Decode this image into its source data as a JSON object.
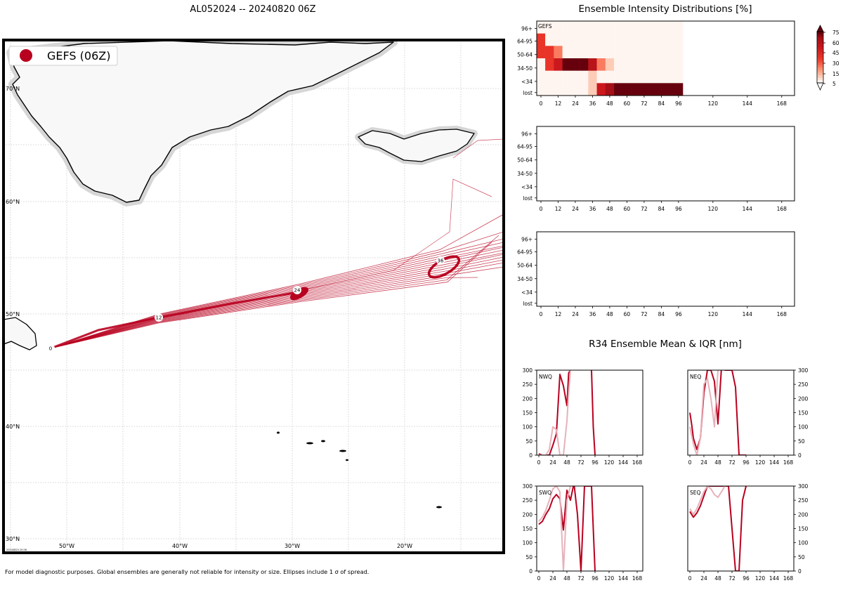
{
  "main_title": "AL052024 -- 20240820 06Z",
  "footer_note": "For model diagnostic purposes. Global ensembles are generally not reliable for intensity or size. Ellipses include 1 σ of spread.",
  "stamp": "20240820 20:06",
  "map": {
    "legend_label": "GEFS (06Z)",
    "lat_labels": [
      "70°N",
      "60°N",
      "50°N",
      "40°N",
      "30°N"
    ],
    "lon_labels": [
      "50°W",
      "40°W",
      "30°W",
      "20°W"
    ],
    "track_color": "#b8001f",
    "forecast_hours": [
      "0",
      "12",
      "24",
      "36"
    ]
  },
  "intensity_title": "Ensemble Intensity Distributions [%]",
  "r34_title": "R34 Ensemble Mean & IQR [nm]",
  "colorbar": {
    "ticks": [
      "75",
      "60",
      "45",
      "30",
      "15",
      "5"
    ]
  },
  "chart_data": [
    {
      "type": "heatmap",
      "label": "GEFS",
      "x_ticks": [
        "0",
        "12",
        "24",
        "36",
        "48",
        "60",
        "72",
        "84",
        "96",
        "120",
        "144",
        "168"
      ],
      "y_categories": [
        "96+",
        "64-95",
        "50-64",
        "34-50",
        "<34",
        "lost"
      ],
      "colormap": "Reds",
      "x_hours": [
        0,
        6,
        12,
        18,
        24,
        30,
        36,
        42,
        48,
        54,
        60,
        66,
        72,
        78,
        84,
        90,
        96
      ],
      "values_percent": {
        "96+": [
          0,
          0,
          0,
          0,
          0,
          0,
          0,
          0,
          0,
          0,
          0,
          0,
          0,
          0,
          0,
          0,
          0
        ],
        "64-95": [
          50,
          0,
          0,
          0,
          0,
          0,
          0,
          0,
          0,
          0,
          0,
          0,
          0,
          0,
          0,
          0,
          0
        ],
        "50-64": [
          50,
          50,
          30,
          0,
          0,
          0,
          0,
          0,
          0,
          0,
          0,
          0,
          0,
          0,
          0,
          0,
          0
        ],
        "34-50": [
          0,
          50,
          70,
          100,
          100,
          100,
          80,
          30,
          10,
          0,
          0,
          0,
          0,
          0,
          0,
          0,
          0
        ],
        "<34": [
          0,
          0,
          0,
          0,
          0,
          0,
          10,
          0,
          0,
          0,
          0,
          0,
          0,
          0,
          0,
          0,
          0
        ],
        "lost": [
          0,
          0,
          0,
          0,
          0,
          0,
          10,
          70,
          90,
          100,
          100,
          100,
          100,
          100,
          100,
          100,
          100
        ]
      }
    },
    {
      "type": "heatmap",
      "label": "",
      "x_ticks": [
        "0",
        "12",
        "24",
        "36",
        "48",
        "60",
        "72",
        "84",
        "96",
        "120",
        "144",
        "168"
      ],
      "y_categories": [
        "96+",
        "64-95",
        "50-64",
        "34-50",
        "<34",
        "lost"
      ]
    },
    {
      "type": "heatmap",
      "label": "",
      "x_ticks": [
        "0",
        "12",
        "24",
        "36",
        "48",
        "60",
        "72",
        "84",
        "96",
        "120",
        "144",
        "168"
      ],
      "y_categories": [
        "96+",
        "64-95",
        "50-64",
        "34-50",
        "<34",
        "lost"
      ]
    },
    {
      "type": "line",
      "quadrant": "NWQ",
      "x_ticks": [
        "0",
        "24",
        "48",
        "72",
        "96",
        "120",
        "144",
        "168"
      ],
      "y_ticks": [
        "300",
        "250",
        "200",
        "150",
        "100",
        "50",
        "0"
      ],
      "ylim": [
        0,
        300
      ],
      "series": [
        {
          "role": "mean",
          "x": [
            0,
            3,
            6,
            12,
            18,
            24,
            30,
            36,
            42,
            45,
            48,
            51,
            54
          ],
          "y": [
            5,
            2,
            0,
            0,
            0,
            35,
            75,
            285,
            245,
            210,
            175,
            290,
            300
          ]
        },
        {
          "role": "iqr",
          "x": [
            0,
            6,
            12,
            18,
            24,
            30,
            36,
            42,
            45,
            48,
            51,
            54
          ],
          "y": [
            0,
            0,
            0,
            20,
            100,
            90,
            0,
            0,
            60,
            120,
            220,
            300
          ]
        },
        {
          "role": "mean",
          "x": [
            90,
            93,
            96
          ],
          "y": [
            300,
            100,
            0
          ]
        }
      ]
    },
    {
      "type": "line",
      "quadrant": "NEQ",
      "x_ticks": [
        "0",
        "24",
        "48",
        "72",
        "96",
        "120",
        "144",
        "168"
      ],
      "y_ticks": [
        "300",
        "250",
        "200",
        "150",
        "100",
        "50",
        "0"
      ],
      "ylim": [
        0,
        300
      ],
      "series": [
        {
          "role": "mean",
          "x": [
            0,
            3,
            6,
            9,
            12,
            18,
            24,
            30,
            36,
            42,
            48,
            54,
            60,
            66,
            72,
            78,
            84,
            90,
            96
          ],
          "y": [
            150,
            110,
            60,
            40,
            20,
            60,
            220,
            300,
            300,
            260,
            110,
            310,
            300,
            300,
            300,
            240,
            0,
            0,
            0
          ]
        },
        {
          "role": "iqr",
          "x": [
            0,
            6,
            12,
            18,
            24,
            30,
            36,
            42,
            48
          ],
          "y": [
            100,
            40,
            0,
            60,
            250,
            270,
            200,
            100,
            300
          ]
        }
      ]
    },
    {
      "type": "line",
      "quadrant": "SWQ",
      "x_ticks": [
        "0",
        "24",
        "48",
        "72",
        "96",
        "120",
        "144",
        "168"
      ],
      "y_ticks": [
        "300",
        "250",
        "200",
        "150",
        "100",
        "50",
        "0"
      ],
      "ylim": [
        0,
        300
      ],
      "series": [
        {
          "role": "mean",
          "x": [
            0,
            6,
            12,
            18,
            24,
            30,
            36,
            42,
            48,
            54,
            60,
            66,
            72,
            78,
            84,
            90,
            96
          ],
          "y": [
            165,
            175,
            200,
            220,
            255,
            270,
            255,
            145,
            285,
            250,
            310,
            200,
            0,
            300,
            300,
            300,
            0
          ]
        },
        {
          "role": "iqr",
          "x": [
            0,
            6,
            12,
            18,
            24,
            30,
            36,
            42,
            48,
            54
          ],
          "y": [
            175,
            190,
            215,
            250,
            290,
            300,
            280,
            0,
            250,
            300
          ]
        }
      ]
    },
    {
      "type": "line",
      "quadrant": "SEQ",
      "x_ticks": [
        "0",
        "24",
        "48",
        "72",
        "96",
        "120",
        "144",
        "168"
      ],
      "y_ticks": [
        "300",
        "250",
        "200",
        "150",
        "100",
        "50",
        "0"
      ],
      "ylim": [
        0,
        300
      ],
      "series": [
        {
          "role": "mean",
          "x": [
            0,
            6,
            12,
            18,
            24,
            30,
            36,
            42,
            48,
            54,
            60,
            66,
            72,
            78,
            84,
            90,
            96
          ],
          "y": [
            210,
            190,
            205,
            230,
            265,
            300,
            300,
            300,
            300,
            300,
            300,
            300,
            150,
            0,
            0,
            250,
            300
          ]
        },
        {
          "role": "iqr",
          "x": [
            0,
            6,
            12,
            18,
            24,
            30,
            36,
            42,
            48,
            54,
            60
          ],
          "y": [
            220,
            200,
            220,
            250,
            280,
            300,
            290,
            270,
            260,
            280,
            300
          ]
        }
      ]
    }
  ]
}
